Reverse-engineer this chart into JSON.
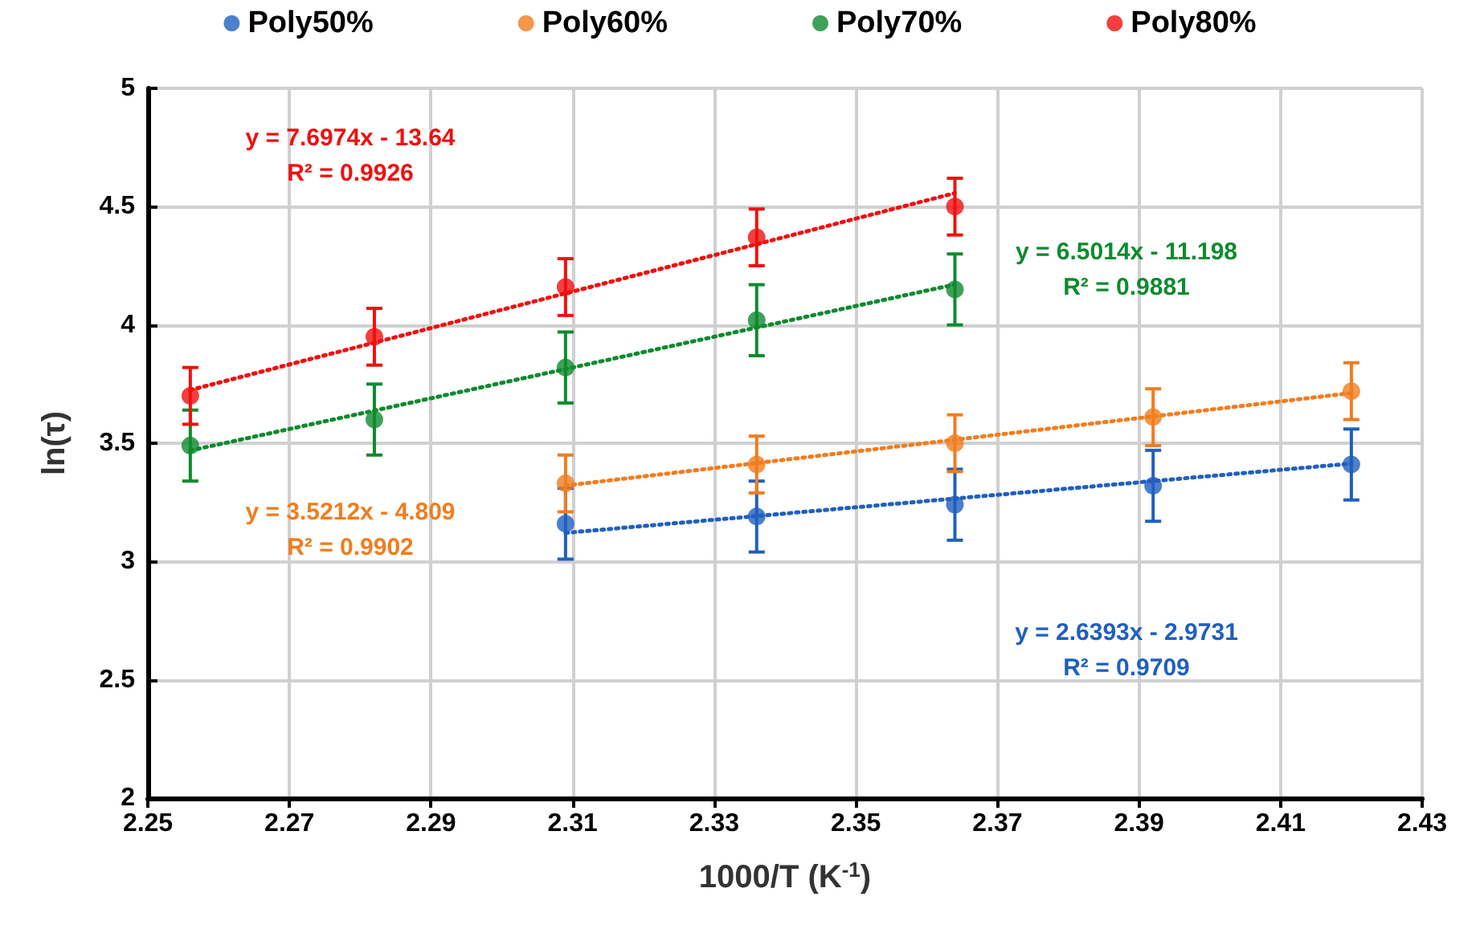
{
  "chart_data": {
    "type": "scatter",
    "xlabel": "1000/T (K$^{-1}$)",
    "ylabel": "ln(τ)",
    "xlim": [
      2.25,
      2.43
    ],
    "xticks": [
      2.25,
      2.27,
      2.29,
      2.31,
      2.33,
      2.35,
      2.37,
      2.39,
      2.41,
      2.43
    ],
    "ylim": [
      2,
      5
    ],
    "yticks": [
      2,
      2.5,
      3,
      3.5,
      4,
      4.5,
      5
    ],
    "grid": true,
    "legend": "top",
    "marker": "circle",
    "series": [
      {
        "name": "Poly50%",
        "color": "#1f5fbf",
        "x": [
          2.309,
          2.336,
          2.364,
          2.392,
          2.42
        ],
        "values": [
          3.16,
          3.19,
          3.24,
          3.32,
          3.41
        ],
        "errors": [
          0.15,
          0.15,
          0.15,
          0.15,
          0.15
        ]
      },
      {
        "name": "Poly60%",
        "color": "#f07d1e",
        "x": [
          2.309,
          2.336,
          2.364,
          2.392,
          2.42
        ],
        "values": [
          3.33,
          3.41,
          3.5,
          3.61,
          3.72
        ],
        "errors": [
          0.12,
          0.12,
          0.12,
          0.12,
          0.12
        ]
      },
      {
        "name": "Poly70%",
        "color": "#0f8a2e",
        "x": [
          2.256,
          2.282,
          2.309,
          2.336,
          2.364
        ],
        "values": [
          3.49,
          3.6,
          3.82,
          4.02,
          4.15
        ],
        "errors": [
          0.15,
          0.15,
          0.15,
          0.15,
          0.15
        ]
      },
      {
        "name": "Poly80%",
        "color": "#f00f0f",
        "x": [
          2.256,
          2.282,
          2.309,
          2.336,
          2.364
        ],
        "values": [
          3.7,
          3.95,
          4.16,
          4.37,
          4.5
        ],
        "errors": [
          0.12,
          0.12,
          0.12,
          0.12,
          0.12
        ]
      },
      {
        "type": "line",
        "color": "#1f5fbf",
        "x": [
          2.309,
          2.42
        ],
        "values": [
          3.121,
          3.414
        ],
        "line_style": "dotted",
        "marker": "none"
      },
      {
        "type": "line",
        "color": "#f07d1e",
        "x": [
          2.309,
          2.42
        ],
        "values": [
          3.321,
          3.712
        ],
        "line_style": "dotted",
        "marker": "none"
      },
      {
        "type": "line",
        "color": "#0f8a2e",
        "x": [
          2.256,
          2.364
        ],
        "values": [
          3.469,
          4.171
        ],
        "line_style": "dotted",
        "marker": "none"
      },
      {
        "type": "line",
        "color": "#f00f0f",
        "x": [
          2.256,
          2.364
        ],
        "values": [
          3.725,
          4.557
        ],
        "line_style": "dotted",
        "marker": "none"
      }
    ],
    "annotations": [
      "y = 2.6393x - 2.9731\nR² = 0.9709",
      "y = 3.5212x - 4.809\nR² = 0.9902",
      "y = 6.5014x - 11.198\nR² = 0.9881",
      "y = 7.6974x - 13.64\nR² = 0.9926"
    ]
  }
}
